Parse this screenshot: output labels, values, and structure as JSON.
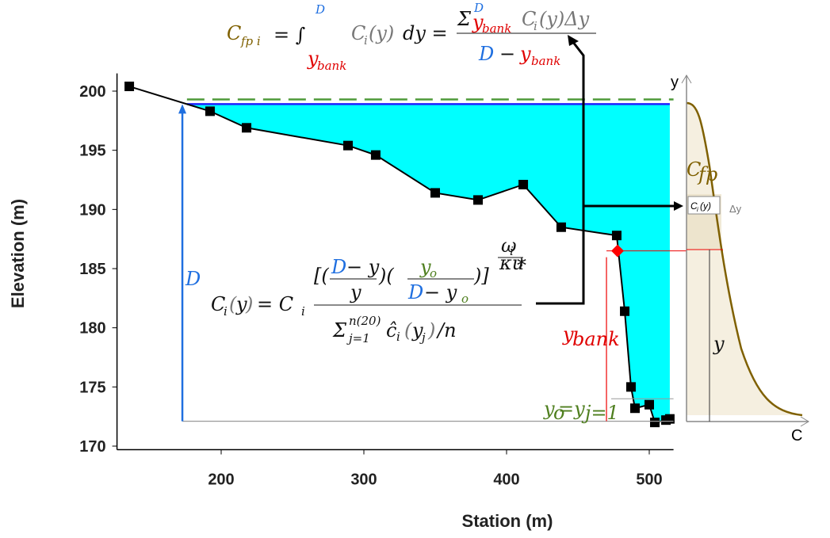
{
  "chart_data": {
    "type": "line",
    "x_label": "Station (m)",
    "y_label": "Elevation (m)",
    "xlim": [
      127,
      517
    ],
    "ylim": [
      169.7,
      201.5
    ],
    "xticks": [
      200,
      300,
      400,
      500
    ],
    "yticks": [
      170,
      175,
      180,
      185,
      190,
      195,
      200
    ],
    "series": [
      {
        "color": "#000000",
        "x": [
          135.6,
          192.2,
          217.8,
          288.9,
          308.3,
          350,
          380,
          411.7,
          438.3,
          477.2,
          482.8,
          487.2,
          490,
          500,
          503.9,
          511.7,
          514.4
        ],
        "values": [
          200.4,
          198.3,
          196.9,
          195.4,
          194.6,
          191.4,
          190.8,
          192.1,
          188.5,
          187.8,
          181.4,
          175.0,
          173.2,
          173.5,
          172.0,
          172.2,
          172.3
        ]
      }
    ],
    "water_level": 198.9,
    "water_color": "#00ffff",
    "water_line_color": "#2020ff",
    "flood_level": 199.3,
    "flood_color": "#4f9a3a",
    "bank_point": {
      "x": 477.8,
      "y": 186.5,
      "color": "#ff0000"
    },
    "bottom_level": 172.1,
    "yo_level": 174.0,
    "d_station": 172.8
  },
  "annotations": {
    "eq1": [
      "C",
      "fp i",
      "= ∫",
      "D",
      "y",
      "bank",
      "C",
      "i",
      "(y)",
      "dy =",
      "Σ",
      "D",
      "y",
      "bank",
      "C",
      "i",
      "(y)Δy",
      "D",
      "−",
      "y",
      "bank"
    ],
    "eq2": [
      "C",
      "i",
      "(",
      "y",
      ")",
      "= C",
      "i",
      "[(",
      "D",
      "− y",
      "y",
      ")(",
      "y",
      "o",
      "D",
      "− y",
      "o",
      ")]",
      "ω",
      "i",
      "κu",
      "*",
      "Σ",
      "n(20)",
      "j=1",
      "ĉ",
      "i",
      "(",
      "y",
      "j",
      ")",
      "/n"
    ],
    "d_label": "D",
    "ybank_label": [
      "y",
      "bank"
    ],
    "yo_label": [
      "y",
      "o",
      " =y",
      "j=1"
    ],
    "profile": {
      "y_axis": "y",
      "c_axis": "C",
      "cfp": [
        "C",
        "fp"
      ],
      "ci": [
        "C",
        "i",
        "(y)"
      ],
      "dy": "Δy",
      "y_dim": "y"
    }
  }
}
